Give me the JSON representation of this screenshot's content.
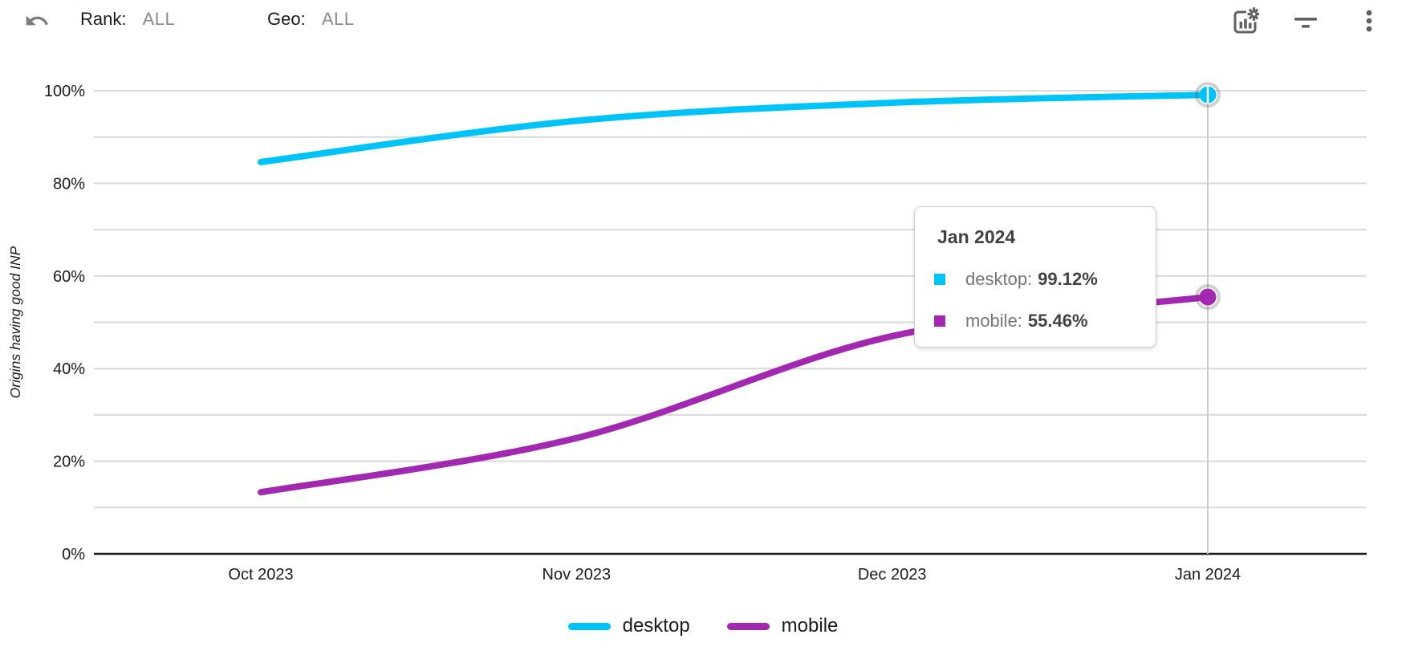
{
  "header": {
    "rank_label": "Rank:",
    "rank_value": "ALL",
    "geo_label": "Geo:",
    "geo_value": "ALL",
    "icons": {
      "undo": "undo-icon",
      "chart_settings": "chart-settings-icon",
      "filter": "filter-icon",
      "more": "more-vert-icon"
    }
  },
  "colors": {
    "desktop": "#00C3F7",
    "mobile": "#A228B1",
    "gridline": "#D9D9D9",
    "axis": "#1A1A1A",
    "crosshair": "#CCCCCC",
    "tick_text": "#1B1B1B",
    "icon_gray": "#616161"
  },
  "chart_data": {
    "type": "line",
    "title": "",
    "xlabel": "",
    "ylabel": "Origins having good INP",
    "categories": [
      "Oct 2023",
      "Nov 2023",
      "Dec 2023",
      "Jan 2024"
    ],
    "series": [
      {
        "name": "desktop",
        "color": "#00C3F7",
        "values": [
          84.6,
          93.5,
          97.4,
          99.12
        ]
      },
      {
        "name": "mobile",
        "color": "#A228B1",
        "values": [
          13.3,
          25.0,
          47.0,
          55.46
        ]
      }
    ],
    "ylim": [
      0,
      100
    ],
    "ytick_labels": [
      "0%",
      "20%",
      "40%",
      "60%",
      "80%",
      "100%"
    ],
    "grid_step": 10,
    "grid": true,
    "legend_position": "bottom",
    "hover_index": 3
  },
  "tooltip": {
    "title": "Jan 2024",
    "rows": [
      {
        "label": "desktop:",
        "value": "99.12%",
        "color": "#00C3F7"
      },
      {
        "label": "mobile:",
        "value": "55.46%",
        "color": "#A228B1"
      }
    ]
  },
  "legend": {
    "items": [
      {
        "label": "desktop",
        "color": "#00C3F7"
      },
      {
        "label": "mobile",
        "color": "#A228B1"
      }
    ]
  }
}
